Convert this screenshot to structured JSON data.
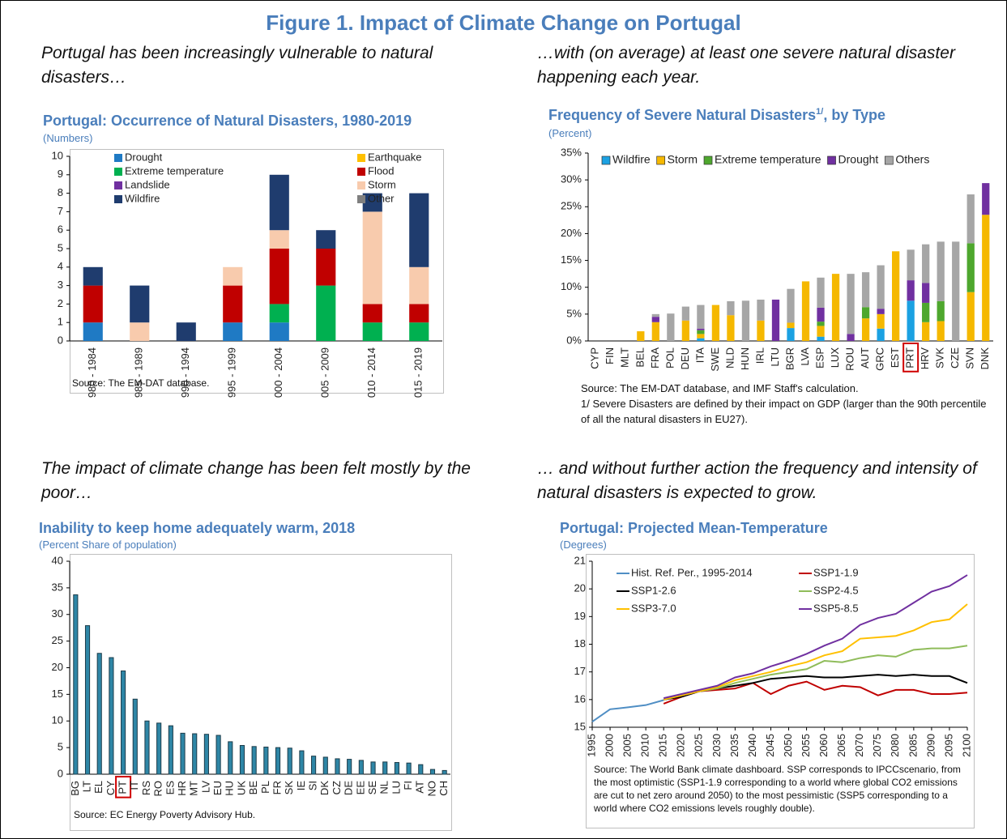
{
  "title": "Figure 1. Impact of Climate Change on Portugal",
  "chart_data": [
    {
      "type": "stacked_bar",
      "caption": "Portugal has been increasingly vulnerable to natural disasters…",
      "title": "Portugal: Occurrence of Natural Disasters, 1980-2019",
      "subtitle": "(Numbers)",
      "source": "Source: The EM-DAT database.",
      "categories": [
        "1980 - 1984",
        "1985 - 1989",
        "1990 - 1994",
        "1995 - 1999",
        "2000 - 2004",
        "2005 - 2009",
        "2010 - 2014",
        "2015 - 2019"
      ],
      "series": [
        {
          "name": "Drought",
          "color": "#1f7ac4",
          "values": [
            1,
            0,
            0,
            1,
            1,
            0,
            0,
            0
          ]
        },
        {
          "name": "Earthquake",
          "color": "#ffc000",
          "values": [
            0,
            0,
            0,
            0,
            0,
            0,
            0,
            0
          ]
        },
        {
          "name": "Extreme temperature",
          "color": "#00b050",
          "values": [
            0,
            0,
            0,
            0,
            1,
            3,
            1,
            1
          ]
        },
        {
          "name": "Flood",
          "color": "#c00000",
          "values": [
            2,
            0,
            0,
            2,
            3,
            2,
            1,
            1
          ]
        },
        {
          "name": "Landslide",
          "color": "#7030a0",
          "values": [
            0,
            0,
            0,
            0,
            0,
            0,
            0,
            0
          ]
        },
        {
          "name": "Storm",
          "color": "#f8cbad",
          "values": [
            0,
            1,
            0,
            1,
            1,
            0,
            5,
            2
          ]
        },
        {
          "name": "Wildfire",
          "color": "#1f3c6e",
          "values": [
            1,
            2,
            1,
            0,
            3,
            1,
            1,
            4
          ]
        },
        {
          "name": "Other",
          "color": "#7f7f7f",
          "values": [
            0,
            0,
            0,
            0,
            0,
            0,
            0,
            0
          ]
        }
      ],
      "ylim": [
        0,
        10
      ],
      "yticks": [
        0,
        1,
        2,
        3,
        4,
        5,
        6,
        7,
        8,
        9,
        10
      ],
      "grid": false
    },
    {
      "type": "stacked_bar",
      "caption": "…with (on average) at least one severe natural disaster happening each year.",
      "title": "Frequency of Severe Natural Disasters",
      "title_footnote": "1/",
      "title_suffix": ", by Type",
      "subtitle": "(Percent)",
      "source": "Source: The EM-DAT database, and IMF Staff's calculation.",
      "note": "1/ Severe Disasters are defined by their impact on GDP (larger than the 90th percentile of all the natural disasters in EU27).",
      "categories": [
        "CYP",
        "FIN",
        "MLT",
        "BEL",
        "FRA",
        "POL",
        "DEU",
        "ITA",
        "SWE",
        "NLD",
        "HUN",
        "IRL",
        "LTU",
        "BGR",
        "LVA",
        "ESP",
        "LUX",
        "ROU",
        "AUT",
        "GRC",
        "EST",
        "PRT",
        "HRV",
        "SVK",
        "CZE",
        "SVN",
        "DNK"
      ],
      "highlight": "PRT",
      "series": [
        {
          "name": "Wildfire",
          "color": "#1ba1e2",
          "values": [
            0,
            0,
            0,
            0,
            0,
            0,
            0,
            0.5,
            0,
            0,
            0,
            0,
            0,
            2.4,
            0,
            0.8,
            0,
            0,
            0,
            2.3,
            0,
            7.5,
            0,
            0,
            0,
            0,
            0
          ]
        },
        {
          "name": "Storm",
          "color": "#f5b800",
          "values": [
            0,
            0,
            0,
            1.8,
            3.5,
            0,
            3.8,
            0.8,
            6.7,
            4.8,
            0,
            3.8,
            0,
            1,
            11.1,
            2,
            12.5,
            0,
            4.2,
            2.7,
            16.7,
            0,
            3.5,
            3.7,
            0,
            9.1,
            23.5
          ]
        },
        {
          "name": "Extreme temperature",
          "color": "#4ea72e",
          "values": [
            0,
            0,
            0,
            0,
            0,
            0,
            0,
            0.7,
            0,
            0,
            0,
            0,
            0,
            0,
            0,
            0.8,
            0,
            0,
            2.1,
            0,
            0,
            0,
            3.6,
            3.7,
            0,
            9.1,
            0
          ]
        },
        {
          "name": "Drought",
          "color": "#7030a0",
          "values": [
            0,
            0,
            0,
            0,
            1.0,
            0,
            0,
            0.3,
            0,
            0,
            0,
            0,
            7.7,
            0,
            0,
            2.6,
            0,
            1.3,
            0,
            1.0,
            0,
            3.8,
            3.7,
            0,
            0,
            0,
            5.9
          ]
        },
        {
          "name": "Others",
          "color": "#a6a6a6",
          "values": [
            0,
            0,
            0,
            0,
            0.5,
            5.1,
            2.6,
            4.4,
            0,
            2.6,
            7.5,
            3.9,
            0,
            6.3,
            0,
            5.6,
            0,
            11.2,
            6.5,
            8.1,
            0,
            5.7,
            7.2,
            11.1,
            18.5,
            9.1,
            0
          ]
        }
      ],
      "ylim": [
        0,
        35
      ],
      "yticks": [
        {
          "value": 0,
          "label": "0%"
        },
        {
          "value": 5,
          "label": "5%"
        },
        {
          "value": 10,
          "label": "10%"
        },
        {
          "value": 15,
          "label": "15%"
        },
        {
          "value": 20,
          "label": "20%"
        },
        {
          "value": 25,
          "label": "25%"
        },
        {
          "value": 30,
          "label": "30%"
        },
        {
          "value": 35,
          "label": "35%"
        }
      ],
      "grid": false
    },
    {
      "type": "bar",
      "caption": "The impact of climate change has been felt mostly by the poor…",
      "title": "Inability to keep home adequately warm, 2018",
      "subtitle": "(Percent Share of population)",
      "source": "Source: EC Energy Poverty Advisory Hub.",
      "categories": [
        "BG",
        "LT",
        "EL",
        "CY",
        "PT",
        "IT",
        "RS",
        "RO",
        "ES",
        "HR",
        "MT",
        "LV",
        "EU",
        "HU",
        "UK",
        "BE",
        "PL",
        "FR",
        "SK",
        "IE",
        "SI",
        "DK",
        "CZ",
        "DE",
        "EE",
        "SE",
        "NL",
        "LU",
        "FI",
        "AT",
        "NO",
        "CH"
      ],
      "highlight": "PT",
      "values": [
        33.7,
        27.9,
        22.7,
        21.9,
        19.4,
        14.1,
        10.0,
        9.6,
        9.1,
        7.7,
        7.6,
        7.5,
        7.3,
        6.1,
        5.4,
        5.2,
        5.1,
        5.0,
        4.9,
        4.4,
        3.4,
        3.2,
        2.9,
        2.8,
        2.6,
        2.3,
        2.3,
        2.2,
        2.1,
        1.8,
        0.9,
        0.7
      ],
      "color": "#2e86a6",
      "ylim": [
        0,
        40
      ],
      "yticks": [
        0,
        5,
        10,
        15,
        20,
        25,
        30,
        35,
        40
      ],
      "grid": false
    },
    {
      "type": "line",
      "caption": "… and without further action the frequency and intensity of natural disasters is expected to grow.",
      "title": "Portugal: Projected Mean-Temperature",
      "subtitle": "(Degrees)",
      "source": "Source: The World Bank climate dashboard. SSP corresponds to IPCCscenario, from the most optimistic (SSP1-1.9 corresponding to a world where global CO2 emissions are cut to net zero around 2050) to the most pessimistic (SSP5 corresponding to a world where CO2 emissions levels roughly double).",
      "x": [
        1995,
        2000,
        2005,
        2010,
        2015,
        2020,
        2025,
        2030,
        2035,
        2040,
        2045,
        2050,
        2055,
        2060,
        2065,
        2070,
        2075,
        2080,
        2085,
        2090,
        2095,
        2100
      ],
      "series": [
        {
          "name": "Hist. Ref. Per., 1995-2014",
          "color": "#4f8ec4",
          "values": [
            15.2,
            15.65,
            15.72,
            15.8,
            15.98,
            null,
            null,
            null,
            null,
            null,
            null,
            null,
            null,
            null,
            null,
            null,
            null,
            null,
            null,
            null,
            null,
            null
          ]
        },
        {
          "name": "SSP1-1.9",
          "color": "#c00000",
          "values": [
            null,
            null,
            null,
            null,
            15.85,
            16.1,
            16.3,
            16.35,
            16.4,
            16.6,
            16.2,
            16.5,
            16.65,
            16.35,
            16.5,
            16.45,
            16.15,
            16.35,
            16.35,
            16.2,
            16.2,
            16.25
          ]
        },
        {
          "name": "SSP1-2.6",
          "color": "#000000",
          "values": [
            null,
            null,
            null,
            null,
            16.0,
            16.1,
            16.3,
            16.4,
            16.5,
            16.6,
            16.75,
            16.8,
            16.85,
            16.8,
            16.8,
            16.85,
            16.9,
            16.85,
            16.9,
            16.85,
            16.85,
            16.6
          ]
        },
        {
          "name": "SSP2-4.5",
          "color": "#8fbc5a",
          "values": [
            null,
            null,
            null,
            null,
            16.0,
            16.15,
            16.3,
            16.4,
            16.6,
            16.75,
            16.9,
            17.0,
            17.1,
            17.4,
            17.35,
            17.5,
            17.6,
            17.55,
            17.8,
            17.85,
            17.85,
            17.95
          ]
        },
        {
          "name": "SSP3-7.0",
          "color": "#ffc000",
          "values": [
            null,
            null,
            null,
            null,
            16.0,
            16.15,
            16.3,
            16.45,
            16.7,
            16.85,
            17.0,
            17.2,
            17.35,
            17.6,
            17.75,
            18.2,
            18.25,
            18.3,
            18.5,
            18.8,
            18.9,
            19.45
          ]
        },
        {
          "name": "SSP5-8.5",
          "color": "#7030a0",
          "values": [
            null,
            null,
            null,
            null,
            16.05,
            16.2,
            16.35,
            16.5,
            16.8,
            16.95,
            17.2,
            17.4,
            17.65,
            17.95,
            18.2,
            18.7,
            18.95,
            19.1,
            19.5,
            19.9,
            20.1,
            20.5
          ]
        }
      ],
      "xlim": [
        1995,
        2100
      ],
      "xticks": [
        1995,
        2000,
        2005,
        2010,
        2015,
        2020,
        2025,
        2030,
        2035,
        2040,
        2045,
        2050,
        2055,
        2060,
        2065,
        2070,
        2075,
        2080,
        2085,
        2090,
        2095,
        2100
      ],
      "ylim": [
        15,
        21
      ],
      "yticks": [
        15,
        16,
        17,
        18,
        19,
        20,
        21
      ],
      "grid": false
    }
  ]
}
